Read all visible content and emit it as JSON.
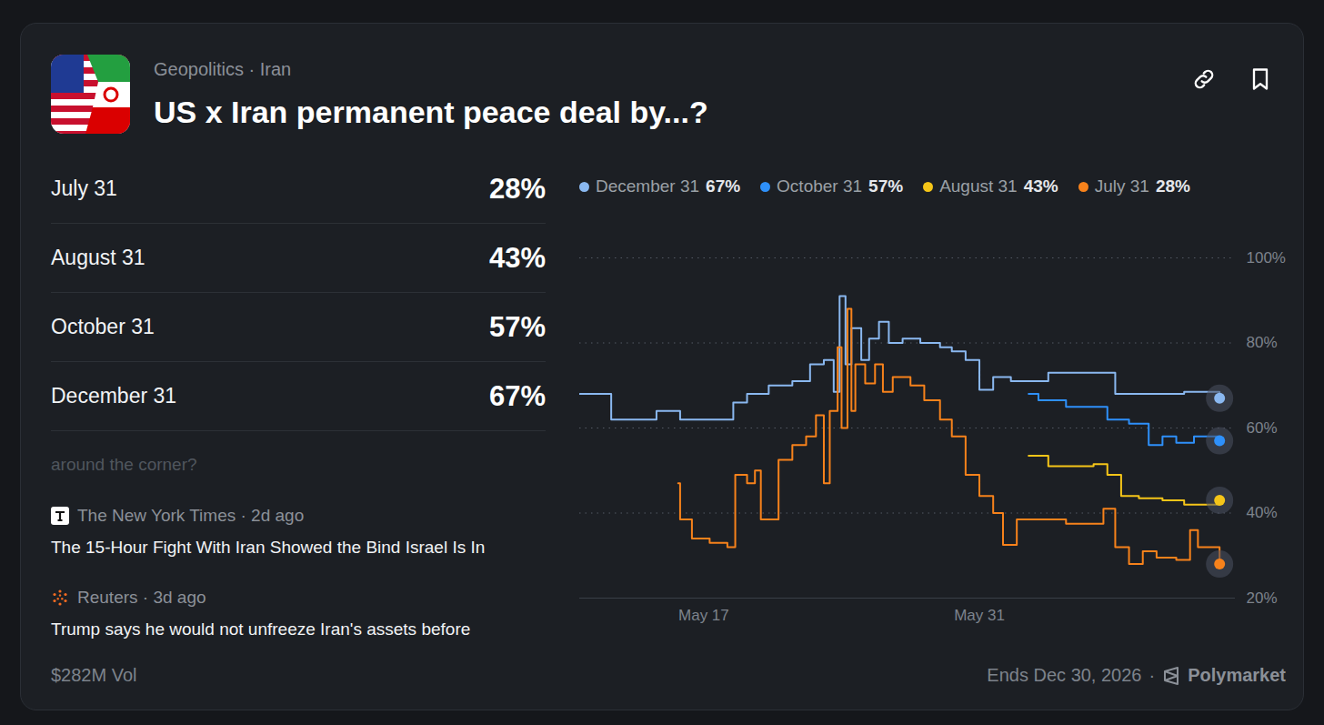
{
  "header": {
    "category": "Geopolitics · Iran"
  },
  "chart_data": {
    "type": "step",
    "title": "US x Iran permanent peace deal by...?",
    "xlim": [
      10.7,
      44
    ],
    "xticks": [
      {
        "value": 17,
        "label": "May 17"
      },
      {
        "value": 31,
        "label": "May 31"
      }
    ],
    "ylim": [
      20,
      100
    ],
    "yticks": [
      {
        "value": 20,
        "label": "20%"
      },
      {
        "value": 40,
        "label": "40%"
      },
      {
        "value": 60,
        "label": "60%"
      },
      {
        "value": 80,
        "label": "80%"
      },
      {
        "value": 100,
        "label": "100%"
      }
    ],
    "grid": true,
    "legend": "top",
    "marker": "circle",
    "series": [
      {
        "name": "December 31",
        "color": "#8ab8f0",
        "x": [
          10.7,
          12.3,
          14.6,
          15.8,
          17.8,
          18.5,
          19.2,
          20.3,
          21.5,
          22.4,
          23.1,
          23.6,
          23.9,
          24.2,
          24.5,
          25.0,
          25.4,
          25.9,
          26.4,
          27.1,
          28.0,
          29.0,
          29.6,
          30.3,
          31.0,
          31.7,
          32.6,
          34.5,
          36.8,
          37.9,
          39.6,
          41.4,
          43.2
        ],
        "values": [
          68,
          62,
          64,
          62,
          62,
          66,
          68,
          70,
          71,
          75,
          76,
          68.5,
          91,
          75,
          83.5,
          76,
          81,
          85,
          80,
          81,
          80,
          79,
          78,
          76,
          69,
          72,
          71,
          73,
          73,
          68,
          68,
          68.5,
          67
        ]
      },
      {
        "name": "October 31",
        "color": "#2e90fa",
        "x": [
          33.5,
          34.0,
          35.4,
          36.8,
          37.5,
          38.6,
          39.6,
          40.3,
          41.0,
          41.9,
          43.2
        ],
        "values": [
          68,
          66.5,
          65,
          65,
          62,
          61,
          56,
          58,
          56.5,
          58,
          57
        ]
      },
      {
        "name": "August 31",
        "color": "#f5c518",
        "x": [
          33.5,
          34.5,
          36.8,
          37.5,
          38.2,
          39.1,
          40.3,
          41.4,
          43.2
        ],
        "values": [
          53.5,
          51,
          51.5,
          49,
          44,
          43.5,
          43,
          42,
          43
        ]
      },
      {
        "name": "July 31",
        "color": "#f7821b",
        "x": [
          15.7,
          15.8,
          16.4,
          17.3,
          18.2,
          18.6,
          19.2,
          19.6,
          19.9,
          20.6,
          20.8,
          21.5,
          22.2,
          22.7,
          23.1,
          23.4,
          23.8,
          24.0,
          24.3,
          24.5,
          24.7,
          25.2,
          25.7,
          26.1,
          26.6,
          27.5,
          28.2,
          29.0,
          29.6,
          30.3,
          31.0,
          31.7,
          32.2,
          32.9,
          35.4,
          37.3,
          37.9,
          38.6,
          39.3,
          40.0,
          41.0,
          41.7,
          42.1,
          43.2
        ],
        "values": [
          47,
          38.5,
          34,
          33,
          32,
          49,
          47,
          50,
          38.5,
          38.5,
          52.5,
          56,
          58,
          63,
          47,
          64,
          79,
          60,
          88,
          64,
          75,
          70.5,
          75,
          68.5,
          72,
          70,
          66.5,
          62,
          58,
          49,
          44,
          40,
          32.5,
          38.5,
          37.5,
          41,
          32,
          28,
          31,
          29.5,
          29,
          36,
          32,
          28
        ]
      }
    ]
  },
  "outcomes": [
    {
      "label": "July 31",
      "value": "28%"
    },
    {
      "label": "August 31",
      "value": "43%"
    },
    {
      "label": "October 31",
      "value": "57%"
    },
    {
      "label": "December 31",
      "value": "67%"
    }
  ],
  "ticker": "around the corner?",
  "news": [
    {
      "source": "The New York Times · 2d ago",
      "headline": "The 15-Hour Fight With Iran Showed the Bind Israel Is In"
    },
    {
      "source": "Reuters · 3d ago",
      "headline": "Trump says he would not unfreeze Iran's assets before"
    }
  ],
  "footer": {
    "volume": "$282M Vol",
    "ends": "Ends Dec 30, 2026",
    "separator": "·",
    "brand": "Polymarket"
  }
}
